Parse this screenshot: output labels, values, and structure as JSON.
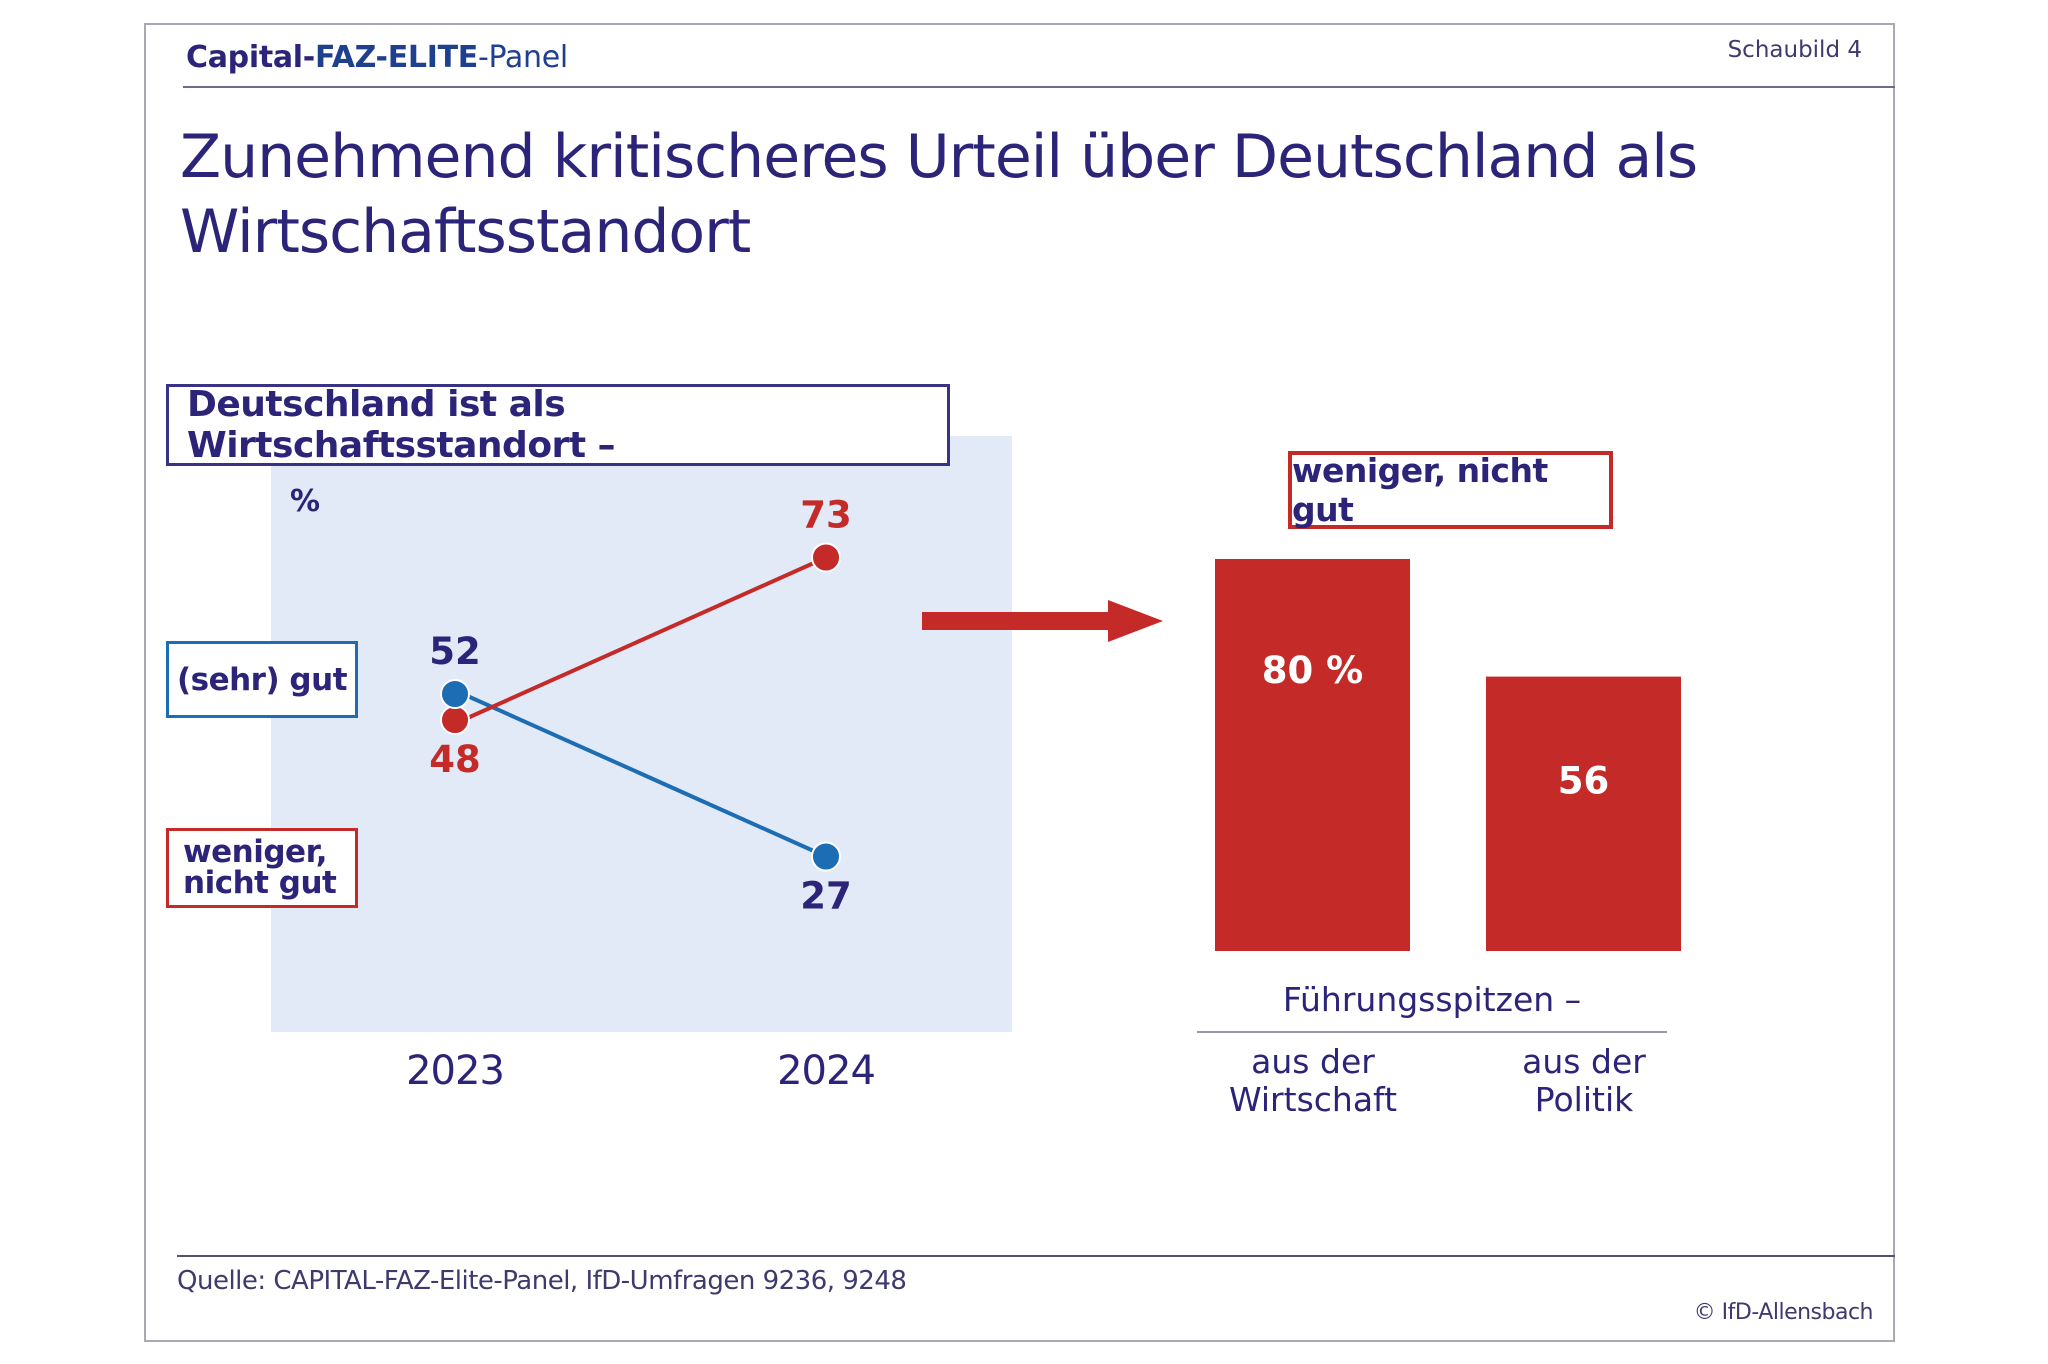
{
  "header": {
    "brand": {
      "part1": "Capital-",
      "part2": "FAZ-ELITE",
      "part3": "-Panel"
    },
    "figure_label": "Schaubild 4",
    "title": "Zunehmend kritischeres Urteil über Deutschland als Wirtschaftsstandort"
  },
  "colors": {
    "navy": "#2b2478",
    "blue": "#1c6db3",
    "red": "#c42b28",
    "panel": "#e2eaf8"
  },
  "chart_data": [
    {
      "type": "line",
      "title": "Deutschland ist als Wirtschaftsstandort –",
      "unit": "%",
      "x": [
        "2023",
        "2024"
      ],
      "series": [
        {
          "name": "(sehr) gut",
          "color": "#1c6db3",
          "values": [
            52,
            27
          ]
        },
        {
          "name": "weniger, nicht gut",
          "color": "#c42b28",
          "values": [
            48,
            73
          ]
        }
      ],
      "xlabel": "",
      "ylabel": "",
      "grid": false,
      "legend": "left"
    },
    {
      "type": "bar",
      "title": "weniger, nicht gut",
      "group_label": "Führungsspitzen –",
      "categories": [
        "aus der Wirtschaft",
        "aus der Politik"
      ],
      "category_lines": [
        [
          "aus der",
          "Wirtschaft"
        ],
        [
          "aus der",
          "Politik"
        ]
      ],
      "values": [
        80,
        56
      ],
      "value_labels": [
        "80 %",
        "56"
      ],
      "color": "#c42b28",
      "ylim": [
        0,
        100
      ]
    }
  ],
  "footer": {
    "source": "Quelle: CAPITAL-FAZ-Elite-Panel, IfD-Umfragen 9236, 9248",
    "copyright": "© IfD-Allensbach"
  }
}
